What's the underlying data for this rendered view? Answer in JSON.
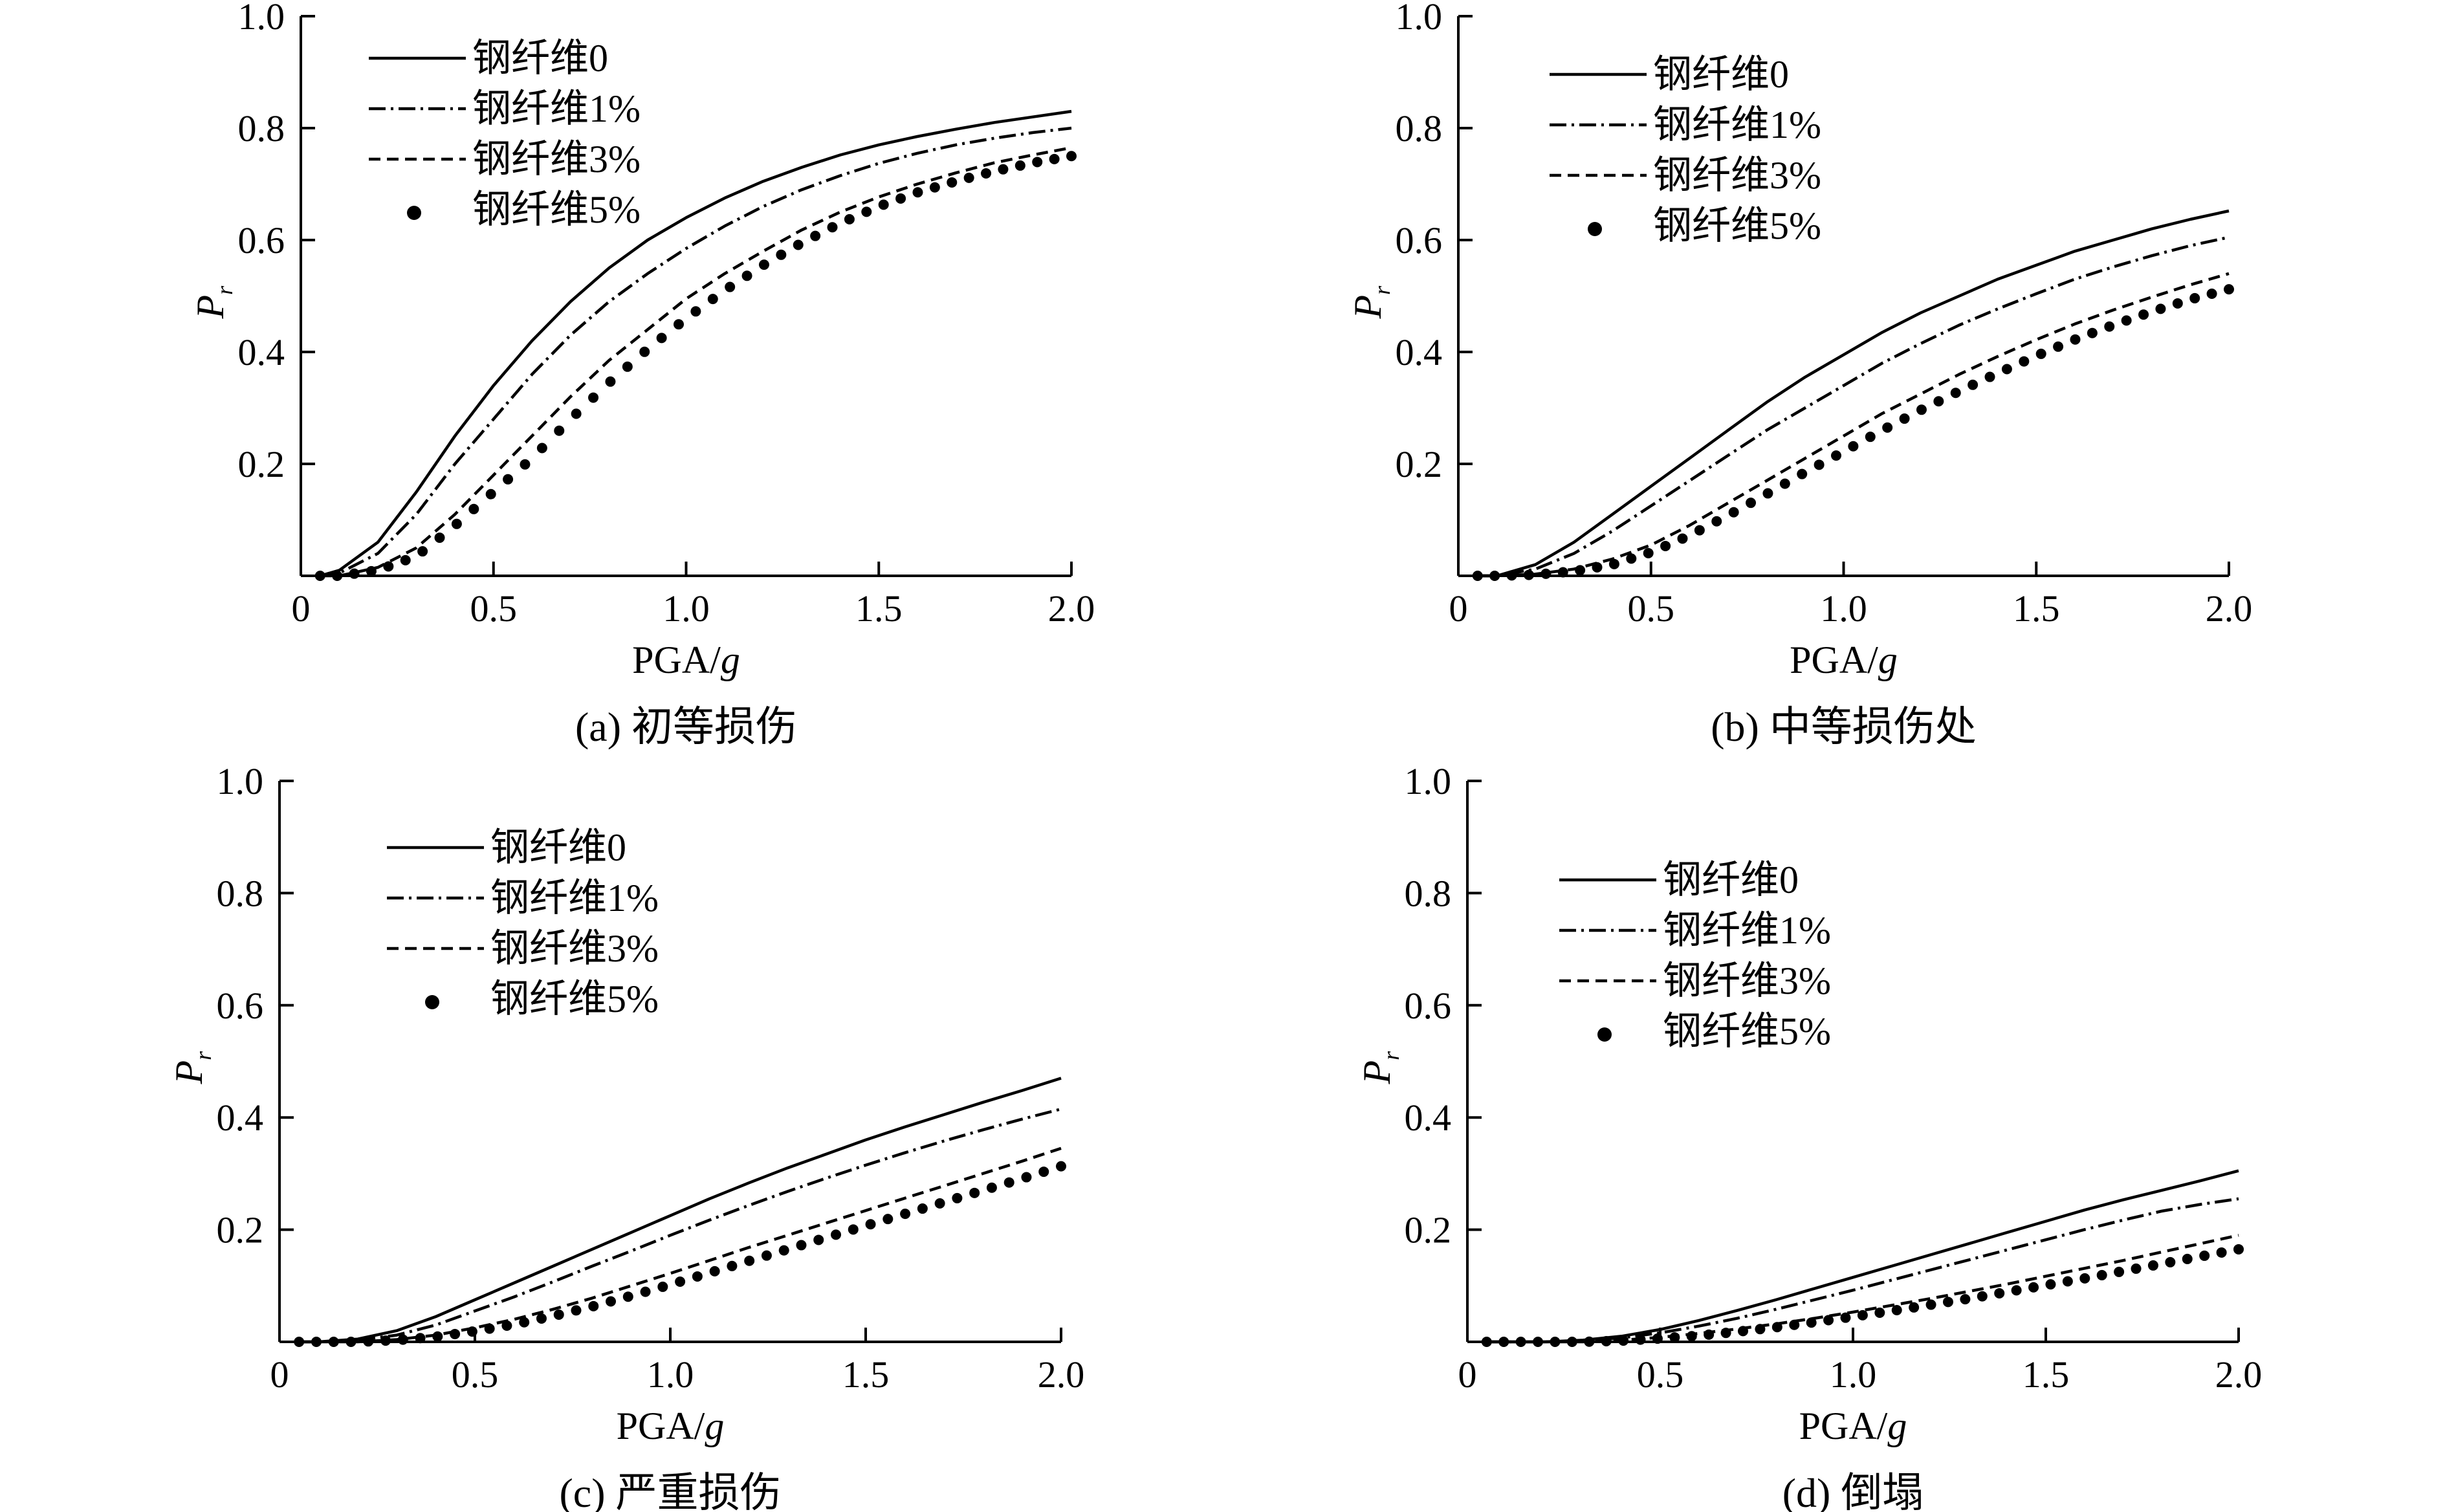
{
  "chart_data": [
    {
      "type": "line",
      "caption": "(a) 初等损伤",
      "xlabel_main": "PGA/",
      "xlabel_var": "g",
      "ylabel_main": "P",
      "ylabel_sub": "r",
      "xlim": [
        0,
        2.0
      ],
      "ylim": [
        0,
        1.0
      ],
      "xticks": [
        "0",
        "0.5",
        "1.0",
        "1.5",
        "2.0"
      ],
      "yticks": [
        "0.2",
        "0.4",
        "0.6",
        "0.8",
        "1.0"
      ],
      "x": [
        0.05,
        0.1,
        0.2,
        0.3,
        0.4,
        0.5,
        0.6,
        0.7,
        0.8,
        0.9,
        1.0,
        1.1,
        1.2,
        1.3,
        1.4,
        1.5,
        1.6,
        1.7,
        1.8,
        1.9,
        2.0
      ],
      "series": [
        {
          "name": "钢纤维0",
          "style": "solid",
          "values": [
            0.0,
            0.01,
            0.06,
            0.15,
            0.25,
            0.34,
            0.42,
            0.49,
            0.55,
            0.6,
            0.64,
            0.675,
            0.705,
            0.73,
            0.752,
            0.77,
            0.785,
            0.798,
            0.81,
            0.82,
            0.83
          ]
        },
        {
          "name": "钢纤维1%",
          "style": "dashdot",
          "values": [
            0.0,
            0.005,
            0.04,
            0.11,
            0.2,
            0.28,
            0.36,
            0.43,
            0.49,
            0.54,
            0.585,
            0.625,
            0.66,
            0.69,
            0.715,
            0.737,
            0.755,
            0.77,
            0.782,
            0.792,
            0.8
          ]
        },
        {
          "name": "钢纤维3%",
          "style": "dashed",
          "values": [
            0.0,
            0.0,
            0.015,
            0.05,
            0.11,
            0.18,
            0.25,
            0.32,
            0.385,
            0.44,
            0.495,
            0.54,
            0.58,
            0.618,
            0.65,
            0.677,
            0.7,
            0.72,
            0.738,
            0.752,
            0.765
          ]
        },
        {
          "name": "钢纤维5%",
          "style": "dots",
          "values": [
            0.0,
            0.0,
            0.01,
            0.035,
            0.09,
            0.15,
            0.21,
            0.28,
            0.345,
            0.405,
            0.46,
            0.51,
            0.555,
            0.595,
            0.63,
            0.66,
            0.685,
            0.705,
            0.723,
            0.738,
            0.75
          ]
        }
      ],
      "legend": {
        "placement": "top-left"
      }
    },
    {
      "type": "line",
      "caption": "(b) 中等损伤处",
      "xlabel_main": "PGA/",
      "xlabel_var": "g",
      "ylabel_main": "P",
      "ylabel_sub": "r",
      "xlim": [
        0,
        2.0
      ],
      "ylim": [
        0,
        1.0
      ],
      "xticks": [
        "0",
        "0.5",
        "1.0",
        "1.5",
        "2.0"
      ],
      "yticks": [
        "0.2",
        "0.4",
        "0.6",
        "0.8",
        "1.0"
      ],
      "x": [
        0.05,
        0.1,
        0.2,
        0.3,
        0.4,
        0.5,
        0.6,
        0.7,
        0.8,
        0.9,
        1.0,
        1.1,
        1.2,
        1.3,
        1.4,
        1.5,
        1.6,
        1.7,
        1.8,
        1.9,
        2.0
      ],
      "series": [
        {
          "name": "钢纤维0",
          "style": "solid",
          "values": [
            0.0,
            0.0,
            0.02,
            0.06,
            0.11,
            0.16,
            0.21,
            0.26,
            0.31,
            0.355,
            0.395,
            0.435,
            0.47,
            0.5,
            0.53,
            0.555,
            0.58,
            0.6,
            0.62,
            0.637,
            0.652
          ]
        },
        {
          "name": "钢纤维1%",
          "style": "dashdot",
          "values": [
            0.0,
            0.0,
            0.012,
            0.04,
            0.08,
            0.125,
            0.17,
            0.215,
            0.26,
            0.3,
            0.34,
            0.38,
            0.415,
            0.448,
            0.477,
            0.504,
            0.53,
            0.552,
            0.572,
            0.59,
            0.605
          ]
        },
        {
          "name": "钢纤维3%",
          "style": "dashed",
          "values": [
            0.0,
            0.0,
            0.003,
            0.012,
            0.03,
            0.055,
            0.09,
            0.13,
            0.17,
            0.21,
            0.25,
            0.29,
            0.325,
            0.36,
            0.392,
            0.422,
            0.45,
            0.475,
            0.498,
            0.52,
            0.54
          ]
        },
        {
          "name": "钢纤维5%",
          "style": "dots",
          "values": [
            0.0,
            0.0,
            0.002,
            0.008,
            0.02,
            0.042,
            0.072,
            0.108,
            0.146,
            0.185,
            0.222,
            0.26,
            0.296,
            0.33,
            0.362,
            0.393,
            0.422,
            0.448,
            0.472,
            0.494,
            0.512
          ]
        }
      ],
      "legend": {
        "placement": "top-left"
      }
    },
    {
      "type": "line",
      "caption": "(c) 严重损伤",
      "xlabel_main": "PGA/",
      "xlabel_var": "g",
      "ylabel_main": "P",
      "ylabel_sub": "r",
      "xlim": [
        0,
        2.0
      ],
      "ylim": [
        0,
        1.0
      ],
      "xticks": [
        "0",
        "0.5",
        "1.0",
        "1.5",
        "2.0"
      ],
      "yticks": [
        "0.2",
        "0.4",
        "0.6",
        "0.8",
        "1.0"
      ],
      "x": [
        0.05,
        0.1,
        0.2,
        0.3,
        0.4,
        0.5,
        0.6,
        0.7,
        0.8,
        0.9,
        1.0,
        1.1,
        1.2,
        1.3,
        1.4,
        1.5,
        1.6,
        1.7,
        1.8,
        1.9,
        2.0
      ],
      "series": [
        {
          "name": "钢纤维0",
          "style": "solid",
          "values": [
            0.0,
            0.0,
            0.005,
            0.02,
            0.045,
            0.075,
            0.105,
            0.135,
            0.165,
            0.195,
            0.225,
            0.255,
            0.283,
            0.31,
            0.335,
            0.36,
            0.383,
            0.405,
            0.427,
            0.448,
            0.47
          ]
        },
        {
          "name": "钢纤维1%",
          "style": "dashdot",
          "values": [
            0.0,
            0.0,
            0.003,
            0.012,
            0.03,
            0.055,
            0.08,
            0.107,
            0.135,
            0.162,
            0.19,
            0.217,
            0.243,
            0.268,
            0.292,
            0.315,
            0.337,
            0.358,
            0.378,
            0.397,
            0.415
          ]
        },
        {
          "name": "钢纤维3%",
          "style": "dashed",
          "values": [
            0.0,
            0.0,
            0.0,
            0.004,
            0.012,
            0.025,
            0.04,
            0.058,
            0.078,
            0.1,
            0.122,
            0.145,
            0.168,
            0.19,
            0.212,
            0.234,
            0.256,
            0.278,
            0.3,
            0.322,
            0.345
          ]
        },
        {
          "name": "钢纤维5%",
          "style": "dots",
          "values": [
            0.0,
            0.0,
            0.0,
            0.003,
            0.009,
            0.019,
            0.031,
            0.046,
            0.063,
            0.082,
            0.102,
            0.123,
            0.144,
            0.165,
            0.186,
            0.207,
            0.228,
            0.249,
            0.27,
            0.291,
            0.313
          ]
        }
      ],
      "legend": {
        "placement": "top-left"
      }
    },
    {
      "type": "line",
      "caption": "(d) 倒塌",
      "xlabel_main": "PGA/",
      "xlabel_var": "g",
      "ylabel_main": "P",
      "ylabel_sub": "r",
      "xlim": [
        0,
        2.0
      ],
      "ylim": [
        0,
        1.0
      ],
      "xticks": [
        "0",
        "0.5",
        "1.0",
        "1.5",
        "2.0"
      ],
      "yticks": [
        "0.2",
        "0.4",
        "0.6",
        "0.8",
        "1.0"
      ],
      "x": [
        0.05,
        0.1,
        0.2,
        0.3,
        0.4,
        0.5,
        0.6,
        0.7,
        0.8,
        0.9,
        1.0,
        1.1,
        1.2,
        1.3,
        1.4,
        1.5,
        1.6,
        1.7,
        1.8,
        1.9,
        2.0
      ],
      "series": [
        {
          "name": "钢纤维0",
          "style": "solid",
          "values": [
            0.0,
            0.0,
            0.0,
            0.003,
            0.01,
            0.022,
            0.038,
            0.056,
            0.075,
            0.095,
            0.115,
            0.135,
            0.155,
            0.175,
            0.195,
            0.215,
            0.235,
            0.253,
            0.27,
            0.287,
            0.305
          ]
        },
        {
          "name": "钢纤维1%",
          "style": "dashdot",
          "values": [
            0.0,
            0.0,
            0.0,
            0.002,
            0.007,
            0.016,
            0.028,
            0.042,
            0.058,
            0.075,
            0.092,
            0.11,
            0.128,
            0.146,
            0.164,
            0.182,
            0.2,
            0.217,
            0.233,
            0.245,
            0.255
          ]
        },
        {
          "name": "钢纤维3%",
          "style": "dashed",
          "values": [
            0.0,
            0.0,
            0.0,
            0.0,
            0.003,
            0.008,
            0.015,
            0.023,
            0.032,
            0.042,
            0.053,
            0.065,
            0.077,
            0.09,
            0.103,
            0.117,
            0.131,
            0.145,
            0.16,
            0.175,
            0.19
          ]
        },
        {
          "name": "钢纤维5%",
          "style": "dots",
          "values": [
            0.0,
            0.0,
            0.0,
            0.0,
            0.002,
            0.006,
            0.011,
            0.018,
            0.026,
            0.035,
            0.045,
            0.055,
            0.066,
            0.077,
            0.089,
            0.101,
            0.113,
            0.126,
            0.139,
            0.152,
            0.165
          ]
        }
      ],
      "legend": {
        "placement": "top-left"
      }
    }
  ]
}
